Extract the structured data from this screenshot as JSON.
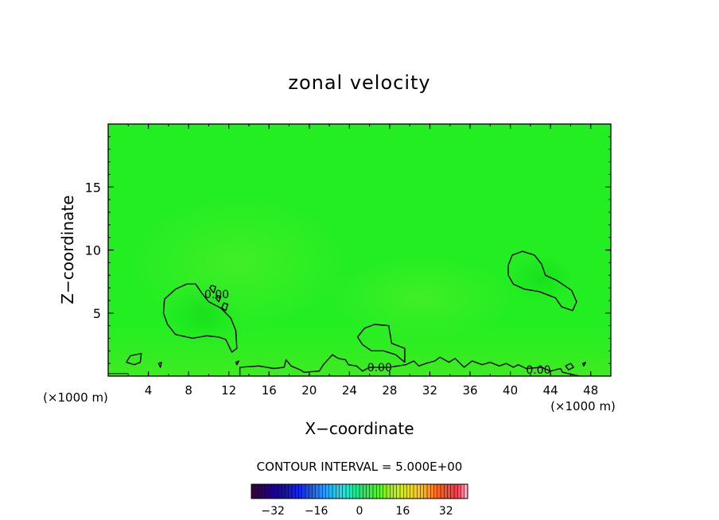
{
  "chart_data": {
    "type": "contour",
    "title": "zonal velocity",
    "xlabel": "X−coordinate",
    "ylabel": "Z−coordinate",
    "x_unit": "(×1000 m)",
    "z_unit": "(×1000 m)",
    "xlim": [
      0,
      50
    ],
    "ylim": [
      0,
      20
    ],
    "xticks": [
      4,
      8,
      12,
      16,
      20,
      24,
      28,
      32,
      36,
      40,
      44,
      48
    ],
    "yticks": [
      5,
      10,
      15
    ],
    "contour_interval_text": "CONTOUR INTERVAL = 5.000E+00",
    "contour_labels": [
      {
        "text": "0.00",
        "x": 10.8,
        "z": 6.5
      },
      {
        "text": "0.00",
        "x": 27.0,
        "z": 0.7
      },
      {
        "text": "0.00",
        "x": 42.8,
        "z": 0.5
      }
    ],
    "contours_zero": [
      [
        [
          5.5,
          5.0
        ],
        [
          5.6,
          6.1
        ],
        [
          6.7,
          6.9
        ],
        [
          7.8,
          7.3
        ],
        [
          8.7,
          7.3
        ],
        [
          9.3,
          6.6
        ],
        [
          10.0,
          5.9
        ],
        [
          11.2,
          5.4
        ],
        [
          12.2,
          4.6
        ],
        [
          12.7,
          3.6
        ],
        [
          12.8,
          2.2
        ],
        [
          12.3,
          1.9
        ],
        [
          11.7,
          2.9
        ],
        [
          11.0,
          3.1
        ],
        [
          9.8,
          3.2
        ],
        [
          8.4,
          3.0
        ],
        [
          6.7,
          3.3
        ],
        [
          5.9,
          4.1
        ],
        [
          5.5,
          5.0
        ]
      ],
      [
        [
          39.8,
          8.8
        ],
        [
          40.2,
          9.6
        ],
        [
          41.2,
          9.9
        ],
        [
          42.4,
          9.6
        ],
        [
          43.1,
          8.9
        ],
        [
          43.5,
          8.0
        ],
        [
          44.6,
          7.6
        ],
        [
          46.1,
          6.8
        ],
        [
          46.6,
          5.9
        ],
        [
          46.2,
          5.2
        ],
        [
          45.1,
          5.5
        ],
        [
          44.5,
          6.2
        ],
        [
          42.9,
          6.7
        ],
        [
          41.4,
          6.9
        ],
        [
          40.3,
          7.3
        ],
        [
          39.8,
          8.0
        ],
        [
          39.8,
          8.8
        ]
      ],
      [
        [
          24.8,
          3.1
        ],
        [
          25.5,
          3.8
        ],
        [
          26.5,
          4.1
        ],
        [
          27.9,
          4.0
        ],
        [
          28.2,
          2.6
        ],
        [
          29.5,
          2.2
        ],
        [
          29.5,
          1.1
        ],
        [
          28.6,
          1.7
        ],
        [
          27.4,
          2.0
        ],
        [
          26.2,
          2.0
        ],
        [
          25.3,
          2.5
        ],
        [
          24.8,
          3.1
        ]
      ],
      [
        [
          10.3,
          7.2
        ],
        [
          10.7,
          7.1
        ],
        [
          10.5,
          6.6
        ],
        [
          10.1,
          7.0
        ],
        [
          10.3,
          7.2
        ]
      ],
      [
        [
          10.9,
          6.4
        ],
        [
          11.2,
          6.3
        ],
        [
          11.0,
          5.9
        ],
        [
          10.7,
          6.2
        ],
        [
          10.9,
          6.4
        ]
      ],
      [
        [
          11.5,
          5.8
        ],
        [
          11.9,
          5.7
        ],
        [
          11.7,
          5.2
        ],
        [
          11.3,
          5.4
        ],
        [
          11.5,
          5.8
        ]
      ],
      [
        [
          1.8,
          1.1
        ],
        [
          2.2,
          1.6
        ],
        [
          3.3,
          1.8
        ],
        [
          3.2,
          1.1
        ],
        [
          2.6,
          0.9
        ],
        [
          1.8,
          1.1
        ]
      ],
      [
        [
          5.0,
          1.0
        ],
        [
          5.3,
          1.1
        ],
        [
          5.2,
          0.7
        ],
        [
          5.0,
          1.0
        ]
      ],
      [
        [
          12.7,
          1.1
        ],
        [
          13.0,
          1.2
        ],
        [
          12.8,
          0.9
        ],
        [
          12.7,
          1.1
        ]
      ],
      [
        [
          45.5,
          0.8
        ],
        [
          46.0,
          1.0
        ],
        [
          46.3,
          0.7
        ],
        [
          45.8,
          0.5
        ],
        [
          45.5,
          0.8
        ]
      ],
      [
        [
          47.2,
          1.0
        ],
        [
          47.5,
          1.1
        ],
        [
          47.3,
          0.8
        ],
        [
          47.2,
          1.0
        ]
      ]
    ],
    "contour_ground": [
      [
        13.1,
        0.0
      ],
      [
        13.1,
        0.7
      ],
      [
        15.0,
        0.8
      ],
      [
        16.5,
        0.6
      ],
      [
        17.5,
        0.7
      ],
      [
        17.7,
        1.3
      ],
      [
        18.2,
        0.8
      ],
      [
        19.1,
        0.5
      ],
      [
        19.5,
        0.3
      ],
      [
        21.0,
        0.4
      ],
      [
        21.4,
        0.9
      ],
      [
        22.3,
        1.7
      ],
      [
        22.9,
        1.4
      ],
      [
        23.6,
        1.3
      ],
      [
        23.9,
        0.9
      ],
      [
        24.7,
        0.8
      ],
      [
        25.3,
        0.4
      ],
      [
        26.0,
        0.7
      ],
      [
        28.0,
        0.7
      ],
      [
        29.6,
        0.9
      ],
      [
        30.4,
        1.2
      ],
      [
        30.9,
        0.8
      ],
      [
        31.6,
        1.0
      ],
      [
        32.5,
        1.2
      ],
      [
        33.0,
        1.5
      ],
      [
        33.9,
        1.1
      ],
      [
        34.5,
        1.4
      ],
      [
        35.4,
        0.7
      ],
      [
        36.2,
        1.2
      ],
      [
        37.2,
        0.9
      ],
      [
        38.0,
        1.1
      ],
      [
        38.9,
        0.8
      ],
      [
        39.6,
        1.0
      ],
      [
        40.3,
        0.7
      ],
      [
        40.8,
        0.9
      ],
      [
        41.6,
        0.6
      ],
      [
        43.1,
        0.7
      ],
      [
        44.0,
        0.4
      ],
      [
        45.0,
        0.6
      ],
      [
        45.2,
        0.3
      ],
      [
        46.9,
        0.0
      ]
    ],
    "zero_line_z": 0.2,
    "colorbar": {
      "range": [
        -40,
        40
      ],
      "ticks": [
        -32,
        -16,
        0,
        16,
        32
      ],
      "tick_labels": [
        "−32",
        "−16",
        "0",
        "16",
        "32"
      ]
    },
    "colors": {
      "field": "#22ee22",
      "field_light": "#44ec22",
      "field_dark": "#10d818",
      "contour": "#000000"
    }
  }
}
